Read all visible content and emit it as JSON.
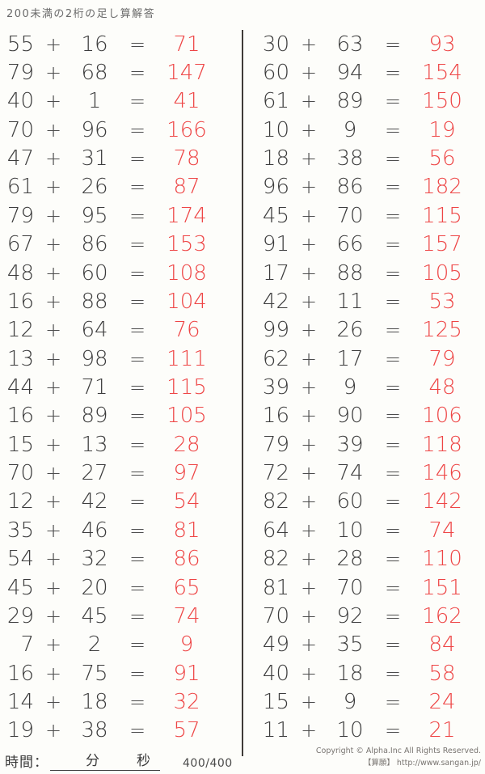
{
  "title": "200未満の2桁の足し算解答",
  "operators": {
    "plus": "+",
    "equals": "="
  },
  "colors": {
    "answer_red": "#ee4545",
    "problem_text": "#3c3c3c",
    "background": "#fdfdfa"
  },
  "columns": {
    "left": [
      {
        "a": "55",
        "b": "16",
        "ans": "71"
      },
      {
        "a": "79",
        "b": "68",
        "ans": "147"
      },
      {
        "a": "40",
        "b": "1",
        "ans": "41"
      },
      {
        "a": "70",
        "b": "96",
        "ans": "166"
      },
      {
        "a": "47",
        "b": "31",
        "ans": "78"
      },
      {
        "a": "61",
        "b": "26",
        "ans": "87"
      },
      {
        "a": "79",
        "b": "95",
        "ans": "174"
      },
      {
        "a": "67",
        "b": "86",
        "ans": "153"
      },
      {
        "a": "48",
        "b": "60",
        "ans": "108"
      },
      {
        "a": "16",
        "b": "88",
        "ans": "104"
      },
      {
        "a": "12",
        "b": "64",
        "ans": "76"
      },
      {
        "a": "13",
        "b": "98",
        "ans": "111"
      },
      {
        "a": "44",
        "b": "71",
        "ans": "115"
      },
      {
        "a": "16",
        "b": "89",
        "ans": "105"
      },
      {
        "a": "15",
        "b": "13",
        "ans": "28"
      },
      {
        "a": "70",
        "b": "27",
        "ans": "97"
      },
      {
        "a": "12",
        "b": "42",
        "ans": "54"
      },
      {
        "a": "35",
        "b": "46",
        "ans": "81"
      },
      {
        "a": "54",
        "b": "32",
        "ans": "86"
      },
      {
        "a": "45",
        "b": "20",
        "ans": "65"
      },
      {
        "a": "29",
        "b": "45",
        "ans": "74"
      },
      {
        "a": "7",
        "b": "2",
        "ans": "9"
      },
      {
        "a": "16",
        "b": "75",
        "ans": "91"
      },
      {
        "a": "14",
        "b": "18",
        "ans": "32"
      },
      {
        "a": "19",
        "b": "38",
        "ans": "57"
      }
    ],
    "right": [
      {
        "a": "30",
        "b": "63",
        "ans": "93"
      },
      {
        "a": "60",
        "b": "94",
        "ans": "154"
      },
      {
        "a": "61",
        "b": "89",
        "ans": "150"
      },
      {
        "a": "10",
        "b": "9",
        "ans": "19"
      },
      {
        "a": "18",
        "b": "38",
        "ans": "56"
      },
      {
        "a": "96",
        "b": "86",
        "ans": "182"
      },
      {
        "a": "45",
        "b": "70",
        "ans": "115"
      },
      {
        "a": "91",
        "b": "66",
        "ans": "157"
      },
      {
        "a": "17",
        "b": "88",
        "ans": "105"
      },
      {
        "a": "42",
        "b": "11",
        "ans": "53"
      },
      {
        "a": "99",
        "b": "26",
        "ans": "125"
      },
      {
        "a": "62",
        "b": "17",
        "ans": "79"
      },
      {
        "a": "39",
        "b": "9",
        "ans": "48"
      },
      {
        "a": "16",
        "b": "90",
        "ans": "106"
      },
      {
        "a": "79",
        "b": "39",
        "ans": "118"
      },
      {
        "a": "72",
        "b": "74",
        "ans": "146"
      },
      {
        "a": "82",
        "b": "60",
        "ans": "142"
      },
      {
        "a": "64",
        "b": "10",
        "ans": "74"
      },
      {
        "a": "82",
        "b": "28",
        "ans": "110"
      },
      {
        "a": "81",
        "b": "70",
        "ans": "151"
      },
      {
        "a": "70",
        "b": "92",
        "ans": "162"
      },
      {
        "a": "49",
        "b": "35",
        "ans": "84"
      },
      {
        "a": "40",
        "b": "18",
        "ans": "58"
      },
      {
        "a": "15",
        "b": "9",
        "ans": "24"
      },
      {
        "a": "11",
        "b": "10",
        "ans": "21"
      }
    ]
  },
  "footer": {
    "time_label": "時間：",
    "minutes_label": "分",
    "seconds_label": "秒",
    "score": "400/400",
    "copyright_line1": "Copyright © Alpha.Inc All Rights Reserved.",
    "copyright_line2": "【算願】 http://www.sangan.jp/"
  }
}
